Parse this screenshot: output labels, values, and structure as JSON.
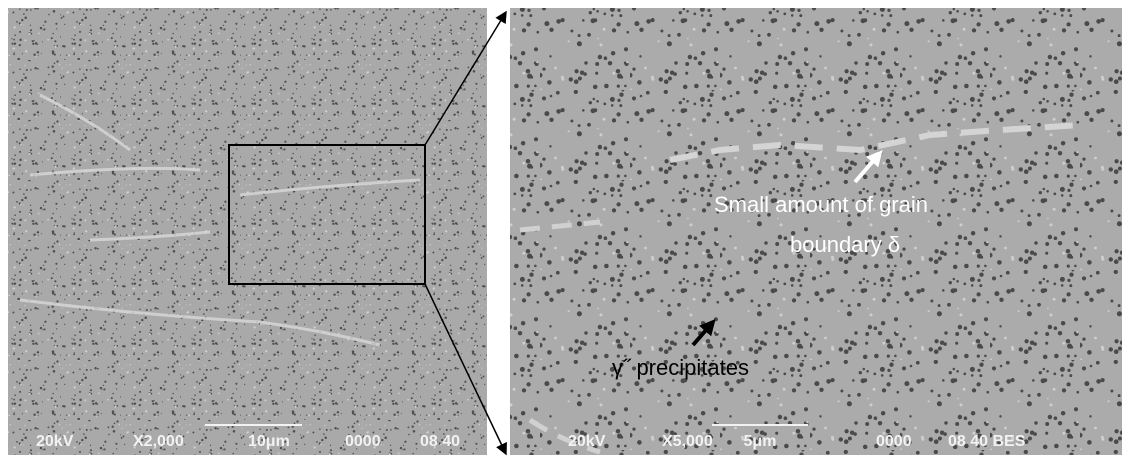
{
  "panels": [
    {
      "info": {
        "voltage": "20kV",
        "magnification": "X2,000",
        "scale": "10μm",
        "id": "0000",
        "code": "08 40"
      }
    },
    {
      "info": {
        "voltage": "20kV",
        "magnification": "X5,000",
        "scale": "5μm",
        "id": "0000",
        "code": "08 40 BES"
      },
      "annotations": [
        {
          "lines": [
            "Small amount of grain",
            "boundary δ"
          ]
        },
        {
          "lines": [
            "γ˝ precipitates"
          ]
        }
      ]
    }
  ]
}
